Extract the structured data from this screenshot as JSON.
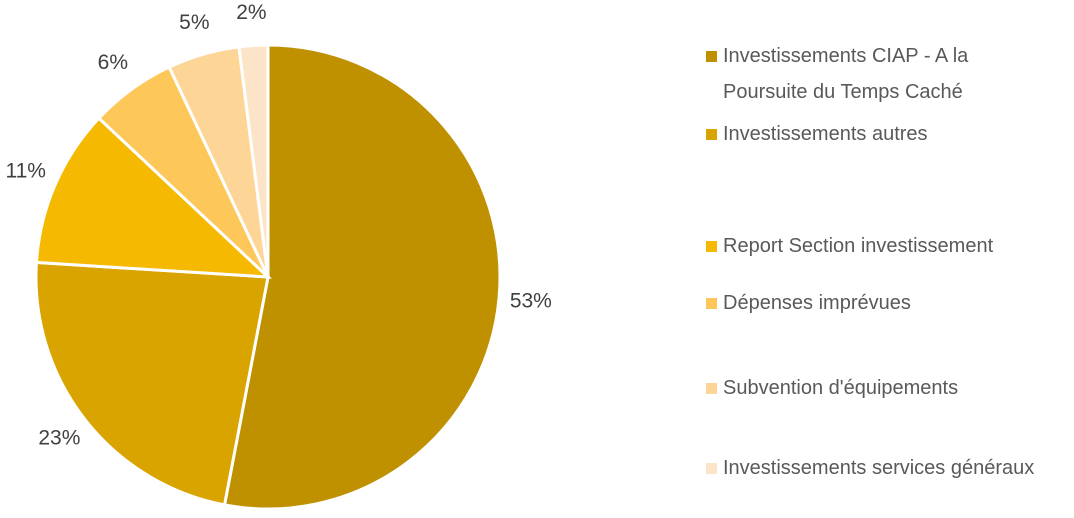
{
  "chart_data": {
    "type": "pie",
    "categories": [
      "Investissements CIAP - A la Poursuite du Temps Caché",
      "Investissements autres",
      "Report Section investissement",
      "Dépenses imprévues",
      "Subvention d'équipements",
      "Investissements services généraux"
    ],
    "values": [
      53,
      23,
      11,
      6,
      5,
      2
    ],
    "value_labels": [
      "53%",
      "23%",
      "11%",
      "6%",
      "5%",
      "2%"
    ],
    "colors": [
      "#bf9000",
      "#d9a300",
      "#f4b900",
      "#fdc75a",
      "#fdd596",
      "#fce4c8"
    ],
    "legend": "right"
  }
}
